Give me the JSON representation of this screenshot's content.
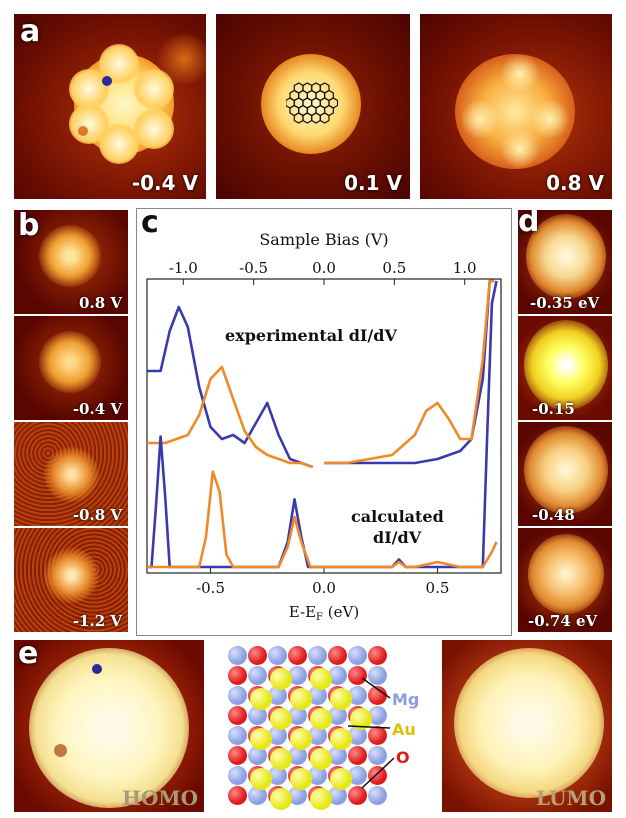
{
  "panels": {
    "a": {
      "letter": "a",
      "voltages": [
        "-0.4 V",
        "0.1 V",
        "0.8 V"
      ]
    },
    "b": {
      "letter": "b",
      "voltages": [
        "0.8 V",
        "-0.4 V",
        "-0.8 V",
        "-1.2 V"
      ]
    },
    "c": {
      "letter": "c"
    },
    "d": {
      "letter": "d",
      "energies": [
        "-0.35 eV",
        "-0.15",
        "-0.48",
        "-0.74 eV"
      ]
    },
    "e": {
      "letter": "e",
      "homo": "HOMO",
      "lumo": "LUMO"
    }
  },
  "chemistry": {
    "labels": [
      "Mg",
      "Au",
      "O"
    ],
    "colors": {
      "Mg": "#8a9ee0",
      "Au": "#e6e614",
      "O": "#e01a1a"
    }
  },
  "chart_data": {
    "type": "line",
    "top_axis_label": "Sample Bias (V)",
    "top_ticks": [
      "-1.0",
      "-0.5",
      "0.0",
      "0.5",
      "1.0"
    ],
    "xlabel": "E-E",
    "xlabel_sub": "F",
    "xlabel_unit": " (eV)",
    "bottom_ticks": [
      "-0.5",
      "0.0",
      "0.5"
    ],
    "xlim": [
      -0.78,
      0.78
    ],
    "annotations": [
      "experimental dI/dV",
      "calculated",
      "dI/dV"
    ],
    "colors": {
      "blue": "#3a3ab0",
      "orange": "#f08a28"
    },
    "series": [
      {
        "group": "experimental",
        "color": "blue",
        "x": [
          -0.78,
          -0.72,
          -0.68,
          -0.64,
          -0.6,
          -0.55,
          -0.5,
          -0.45,
          -0.4,
          -0.35,
          -0.3,
          -0.25,
          -0.2,
          -0.15,
          -0.1,
          -0.05
        ],
        "y": [
          0.72,
          0.72,
          0.82,
          0.88,
          0.83,
          0.68,
          0.58,
          0.55,
          0.56,
          0.54,
          0.59,
          0.64,
          0.56,
          0.5,
          0.49,
          0.48
        ]
      },
      {
        "group": "experimental",
        "color": "blue",
        "x": [
          0.0,
          0.1,
          0.2,
          0.3,
          0.4,
          0.5,
          0.55,
          0.6,
          0.65,
          0.7,
          0.73,
          0.75
        ],
        "y": [
          0.49,
          0.49,
          0.49,
          0.49,
          0.49,
          0.5,
          0.51,
          0.52,
          0.55,
          0.7,
          1.05,
          1.15
        ]
      },
      {
        "group": "experimental",
        "color": "orange",
        "x": [
          -0.78,
          -0.7,
          -0.6,
          -0.55,
          -0.5,
          -0.45,
          -0.4,
          -0.35,
          -0.3,
          -0.25,
          -0.2,
          -0.15,
          -0.1,
          -0.05
        ],
        "y": [
          0.54,
          0.54,
          0.56,
          0.61,
          0.7,
          0.73,
          0.65,
          0.57,
          0.53,
          0.51,
          0.5,
          0.49,
          0.49,
          0.48
        ]
      },
      {
        "group": "experimental",
        "color": "orange",
        "x": [
          0.0,
          0.1,
          0.2,
          0.3,
          0.4,
          0.45,
          0.5,
          0.55,
          0.6,
          0.65,
          0.7,
          0.73,
          0.75
        ],
        "y": [
          0.49,
          0.49,
          0.5,
          0.51,
          0.56,
          0.62,
          0.64,
          0.6,
          0.55,
          0.55,
          0.75,
          1.05,
          1.15
        ]
      },
      {
        "group": "calculated",
        "color": "blue",
        "x": [
          -0.78,
          -0.76,
          -0.74,
          -0.72,
          -0.7,
          -0.68,
          -0.66,
          -0.6,
          -0.5,
          -0.4,
          -0.3,
          -0.2,
          -0.16,
          -0.13,
          -0.1,
          -0.07,
          -0.05,
          0.0,
          0.1,
          0.2,
          0.3,
          0.33,
          0.36,
          0.4,
          0.5,
          0.6,
          0.7,
          0.72,
          0.74,
          0.76
        ],
        "y": [
          0.0,
          0.0,
          0.25,
          0.52,
          0.28,
          0.0,
          0.0,
          0.0,
          0.0,
          0.0,
          0.0,
          0.0,
          0.1,
          0.27,
          0.12,
          0.0,
          0.0,
          0.0,
          0.0,
          0.0,
          0.0,
          0.03,
          0.0,
          0.0,
          0.0,
          0.0,
          0.0,
          0.55,
          1.05,
          1.15
        ]
      },
      {
        "group": "calculated",
        "color": "orange",
        "x": [
          -0.78,
          -0.7,
          -0.6,
          -0.55,
          -0.52,
          -0.49,
          -0.46,
          -0.43,
          -0.4,
          -0.3,
          -0.2,
          -0.16,
          -0.13,
          -0.1,
          -0.06,
          0.0,
          0.1,
          0.2,
          0.3,
          0.33,
          0.36,
          0.4,
          0.5,
          0.6,
          0.7,
          0.74,
          0.76
        ],
        "y": [
          0.0,
          0.0,
          0.0,
          0.0,
          0.12,
          0.38,
          0.3,
          0.05,
          0.0,
          0.0,
          0.0,
          0.08,
          0.2,
          0.1,
          0.0,
          0.0,
          0.0,
          0.0,
          0.0,
          0.02,
          0.0,
          0.0,
          0.02,
          0.0,
          0.0,
          0.06,
          0.1
        ]
      }
    ]
  }
}
